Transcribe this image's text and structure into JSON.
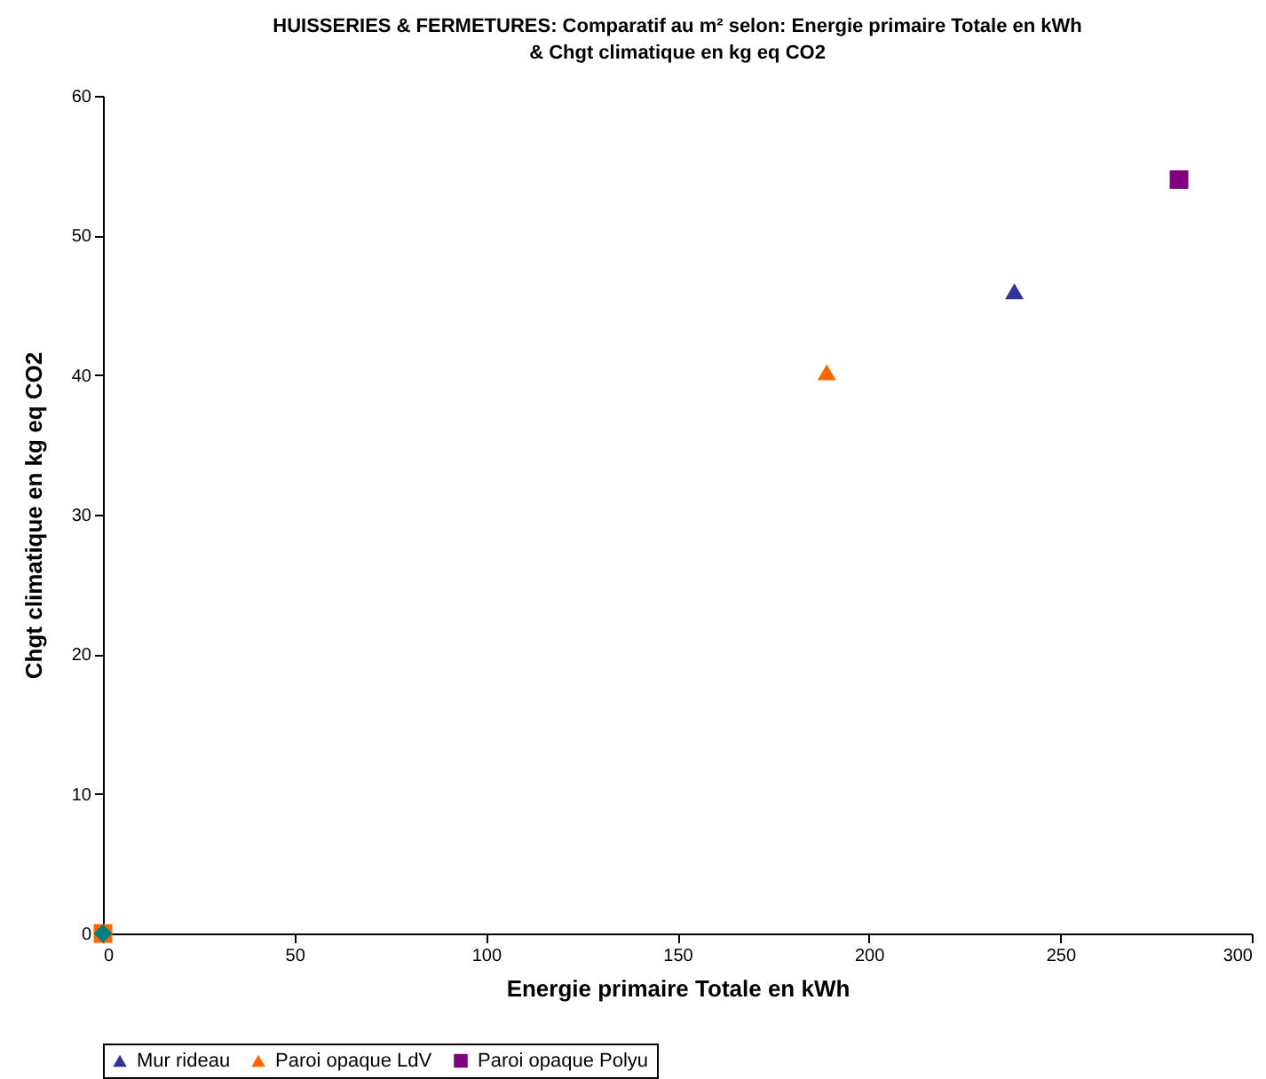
{
  "chart_data": {
    "type": "scatter",
    "title": "HUISSERIES & FERMETURES: Comparatif au m² selon: Energie primaire Totale en kWh & Chgt climatique  en kg eq CO2",
    "xlabel": "Energie primaire Totale en kWh",
    "ylabel": "Chgt climatique  en kg eq CO2",
    "xlim": [
      0,
      300
    ],
    "xticks": [
      0,
      50,
      100,
      150,
      200,
      250,
      300
    ],
    "ylim": [
      0,
      60
    ],
    "yticks": [
      0,
      10,
      20,
      30,
      40,
      50,
      60
    ],
    "grid": false,
    "legend": "bottom",
    "series": [
      {
        "name": "Mur rideau",
        "color": "#333399",
        "marker": "triangle",
        "x": [
          238
        ],
        "values": [
          46
        ]
      },
      {
        "name": "Paroi opaque LdV",
        "color": "#ff6600",
        "marker": "triangle",
        "x": [
          189
        ],
        "values": [
          40.2
        ]
      },
      {
        "name": "Paroi opaque Polyu",
        "color": "#800080",
        "marker": "square",
        "x": [
          281
        ],
        "values": [
          54
        ]
      },
      {
        "color": "#ff6600",
        "marker": "square",
        "x": [
          0
        ],
        "values": [
          0
        ]
      },
      {
        "color": "#008080",
        "marker": "diamond",
        "x": [
          0
        ],
        "values": [
          0
        ]
      }
    ]
  }
}
